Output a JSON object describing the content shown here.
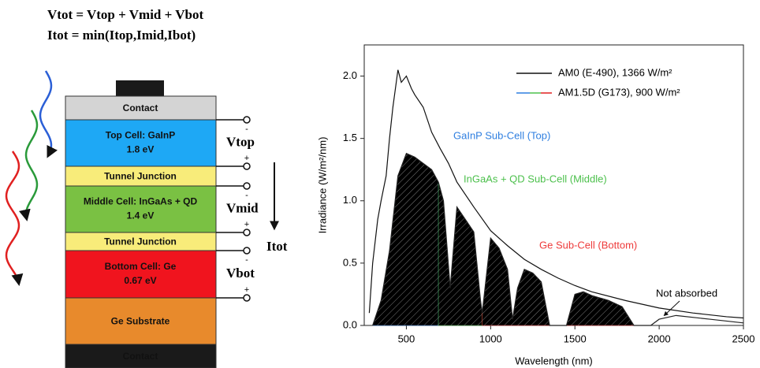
{
  "diagram": {
    "equations": [
      "Vtot = Vtop + Vmid + Vbot",
      "Itot = min(Itop,Imid,Ibot)"
    ],
    "layers": [
      {
        "name": "Contact",
        "color": "#d4d4d4"
      },
      {
        "name": "Top Cell: GaInP",
        "detail": "1.8 eV",
        "color": "#1ea8f5"
      },
      {
        "name": "Tunnel Junction",
        "color": "#f8ec7a"
      },
      {
        "name": "Middle Cell: InGaAs + QD",
        "detail": "1.4 eV",
        "color": "#7ac143"
      },
      {
        "name": "Tunnel Junction",
        "color": "#f8ec7a"
      },
      {
        "name": "Bottom Cell: Ge",
        "detail": "0.67 eV",
        "color": "#f0141e"
      },
      {
        "name": "Ge Substrate",
        "color": "#e88a2c"
      },
      {
        "name": "Contact",
        "color": "#1a1a1a"
      }
    ],
    "voltages": [
      "Vtop",
      "Vmid",
      "Vbot"
    ],
    "current": "Itot",
    "signs": {
      "minus": "-",
      "plus": "+"
    }
  },
  "chart_data": {
    "type": "line",
    "xlabel": "Wavelength (nm)",
    "ylabel": "Irradiance (W/m²/nm)",
    "xlim": [
      250,
      2500
    ],
    "ylim": [
      0,
      2.25
    ],
    "xticks": [
      500,
      1000,
      1500,
      2000,
      2500
    ],
    "yticks": [
      {
        "value": 0,
        "label": "0.0"
      },
      0.5,
      {
        "value": 1,
        "label": "1.0"
      },
      1.5,
      {
        "value": 2,
        "label": "2.0"
      }
    ],
    "series": [
      {
        "name": "AM0 (E-490), 1366 W/m²",
        "color": "#111111",
        "x": [
          280,
          300,
          330,
          350,
          380,
          400,
          420,
          450,
          470,
          500,
          530,
          550,
          600,
          650,
          700,
          750,
          800,
          900,
          1000,
          1100,
          1200,
          1300,
          1400,
          1500,
          1600,
          1800,
          2000,
          2200,
          2400,
          2500
        ],
        "values": [
          0.1,
          0.5,
          0.85,
          1.0,
          1.2,
          1.5,
          1.75,
          2.05,
          1.95,
          2.0,
          1.9,
          1.85,
          1.75,
          1.55,
          1.42,
          1.3,
          1.15,
          0.95,
          0.76,
          0.64,
          0.53,
          0.45,
          0.38,
          0.32,
          0.27,
          0.2,
          0.14,
          0.1,
          0.07,
          0.06
        ]
      },
      {
        "name": "AM1.5D (G173), 900 W/m²",
        "color": "#e02020",
        "x": [
          300,
          350,
          400,
          450,
          500,
          550,
          600,
          650,
          690,
          720,
          760,
          800,
          850,
          900,
          940,
          950,
          1000,
          1050,
          1100,
          1130,
          1160,
          1200,
          1250,
          1300,
          1350,
          1450,
          1500,
          1550,
          1600,
          1700,
          1780,
          1850,
          1950,
          2000,
          2100,
          2300,
          2500
        ],
        "values": [
          0,
          0.2,
          0.6,
          1.2,
          1.38,
          1.35,
          1.3,
          1.25,
          1.15,
          1.0,
          0.3,
          0.95,
          0.85,
          0.75,
          0.2,
          0.1,
          0.7,
          0.62,
          0.45,
          0.05,
          0.3,
          0.45,
          0.42,
          0.35,
          0,
          0,
          0.25,
          0.27,
          0.24,
          0.2,
          0.15,
          0,
          0,
          0.05,
          0.08,
          0.05,
          0.02
        ]
      }
    ],
    "regions": [
      {
        "label": "GaInP Sub-Cell (Top)",
        "color": "#2f7fe0",
        "range": [
          300,
          690
        ]
      },
      {
        "label": "InGaAs + QD Sub-Cell (Middle)",
        "color": "#4cc04c",
        "range": [
          690,
          950
        ]
      },
      {
        "label": "Ge Sub-Cell (Bottom)",
        "color": "#ee3b3b",
        "range": [
          950,
          1850
        ]
      }
    ],
    "annotation": {
      "text": "Not absorbed",
      "x": 2030,
      "y": 0.08
    }
  }
}
